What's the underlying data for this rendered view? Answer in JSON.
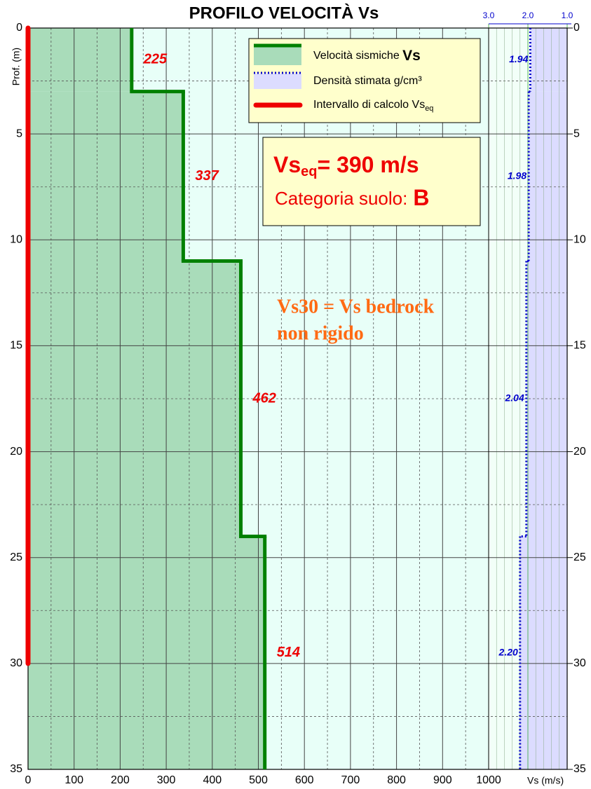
{
  "chart_data": {
    "type": "step-profile",
    "title": "PROFILO VELOCITÀ Vs",
    "y_label": "Prof. (m)",
    "x_label": "Vs (m/s)",
    "xlim": [
      0,
      1000
    ],
    "xticks": [
      0,
      100,
      200,
      300,
      400,
      500,
      600,
      700,
      800,
      900,
      1000
    ],
    "ylim": [
      0,
      35
    ],
    "yticks": [
      0,
      5,
      10,
      15,
      20,
      25,
      30,
      35
    ],
    "x2lim": [
      3,
      1
    ],
    "x2ticks": [
      {
        "value": 3,
        "label": "3.0"
      },
      {
        "value": 2,
        "label": "2.0"
      },
      {
        "value": 1,
        "label": "1.0"
      }
    ],
    "grid": true,
    "depth_breaks": [
      0,
      3,
      11,
      24,
      35
    ],
    "series": [
      {
        "name": "Velocità sismiche Vs",
        "color": "#008000",
        "fill": "#a9dcba",
        "values": [
          225,
          337,
          462,
          514
        ]
      },
      {
        "name": "Densità stimata g/cm³",
        "color": "#0000cc",
        "fill": "#dcdcff",
        "axis": "x2",
        "values": [
          1.94,
          1.98,
          2.04,
          2.2
        ],
        "value_labels": [
          "1.94",
          "1.98",
          "2.04",
          "2.20"
        ]
      }
    ],
    "interval": {
      "name": "Intervallo di calcolo Vs",
      "name_sub": "eq",
      "color": "#ee0000",
      "from": 0,
      "to": 30
    },
    "result_box": {
      "symbol": "Vs",
      "sub": "eq",
      "text": "= 390 m/s",
      "category_label": "Categoria suolo:",
      "category": "B"
    },
    "annotation": [
      "Vs30 = Vs bedrock",
      "non rigido"
    ]
  }
}
